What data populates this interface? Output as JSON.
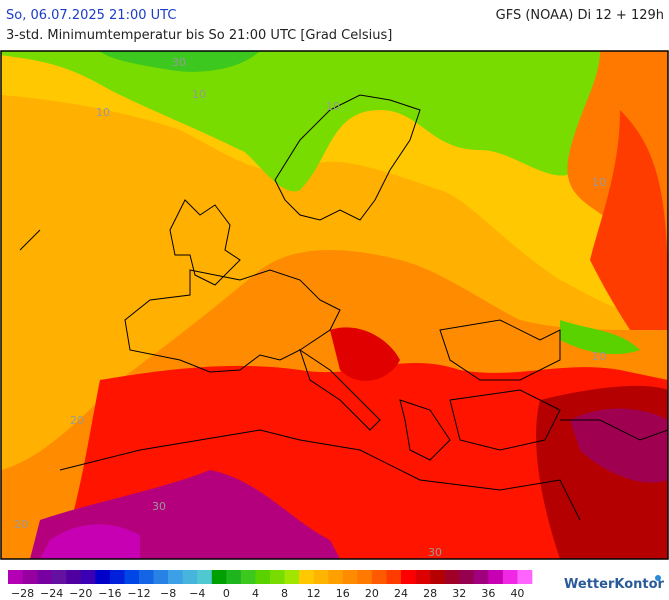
{
  "header": {
    "valid_time": "So, 06.07.2025 21:00 UTC",
    "model": "GFS (NOAA) Di 12 + 129h",
    "subtitle": "3-std. Minimumtemperatur bis So 21:00 UTC [Grad Celsius]"
  },
  "map": {
    "contour_labels": [
      "10",
      "10",
      "10",
      "10",
      "20",
      "20",
      "30",
      "30",
      "10",
      "30"
    ]
  },
  "legend": {
    "ticks": [
      "−28",
      "−24",
      "−20",
      "−16",
      "−12",
      "−8",
      "−4",
      "0",
      "4",
      "8",
      "12",
      "16",
      "20",
      "24",
      "28",
      "32",
      "36",
      "40"
    ],
    "colors": [
      "#b400b4",
      "#9600a0",
      "#7800a0",
      "#6410a0",
      "#5000a0",
      "#3c00b4",
      "#0000c8",
      "#0020dc",
      "#0046e6",
      "#1464e6",
      "#2882e6",
      "#3ca0e6",
      "#46b4dc",
      "#50c8d2",
      "#00a000",
      "#1eb41e",
      "#3cc81e",
      "#5ad200",
      "#78dc00",
      "#a0e600",
      "#ffc800",
      "#ffb400",
      "#ffa000",
      "#ff8c00",
      "#ff7800",
      "#ff5a00",
      "#ff3c00",
      "#ff0000",
      "#dc0000",
      "#b40000",
      "#a00028",
      "#960050",
      "#a0007d",
      "#c800b4",
      "#f028e6",
      "#ff64ff"
    ]
  },
  "footer": {
    "brand": "WetterKontor"
  }
}
